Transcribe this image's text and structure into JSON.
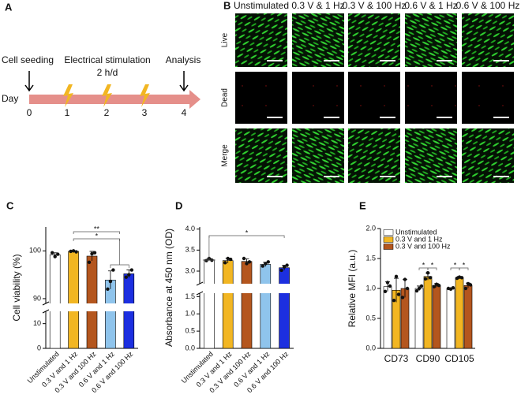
{
  "panel_a": {
    "letter": "A",
    "cell_seeding": "Cell seeding",
    "stimulation": "Electrical stimulation",
    "schedule": "2 h/d",
    "analysis": "Analysis",
    "day": "Day",
    "days": [
      "0",
      "1",
      "2",
      "3",
      "4"
    ]
  },
  "panel_b": {
    "letter": "B",
    "columns": [
      "Unstimulated",
      "0.3 V & 1 Hz",
      "0.3 V & 100 Hz",
      "0.6 V & 1 Hz",
      "0.6 V & 100 Hz"
    ],
    "rows": [
      "Live",
      "Dead",
      "Merge"
    ]
  },
  "chart_data": [
    {
      "type": "bar",
      "panel_letter": "C",
      "ylabel": "Cell viability (%)",
      "categories": [
        "Unstimulated",
        "0.3 V and 1 Hz",
        "0.3 V and 100 Hz",
        "0.6 V and 1 Hz",
        "0.6 V and 100 Hz"
      ],
      "values": [
        99.2,
        99.9,
        98.9,
        93.9,
        95.2
      ],
      "errors": [
        0.4,
        0.1,
        1.0,
        1.9,
        0.8
      ],
      "replicates": [
        [
          99.6,
          98.8,
          99.3
        ],
        [
          99.9,
          100,
          99.8
        ],
        [
          97.6,
          99.4,
          99.6
        ],
        [
          92.0,
          93.6,
          96.0
        ],
        [
          94.5,
          95.0,
          96.0
        ]
      ],
      "colors": [
        "#ffffff",
        "#f2b622",
        "#b4561e",
        "#8fc4ec",
        "#1c2fe0"
      ],
      "y_segments": [
        {
          "ylim": [
            0,
            15
          ],
          "yticks": [
            0,
            10
          ]
        },
        {
          "ylim": [
            89,
            105
          ],
          "yticks": [
            90,
            100
          ]
        }
      ],
      "annotations": [
        "**",
        "*"
      ]
    },
    {
      "type": "bar",
      "panel_letter": "D",
      "ylabel": "Absorbance at 450 nm (OD)",
      "categories": [
        "Unstimulated",
        "0.3 V and 1 Hz",
        "0.3 V and 100 Hz",
        "0.6 V and 1 Hz",
        "0.6 V and 100 Hz"
      ],
      "values": [
        3.27,
        3.25,
        3.23,
        3.16,
        3.08
      ],
      "errors": [
        0.03,
        0.06,
        0.06,
        0.05,
        0.06
      ],
      "replicates": [
        [
          3.25,
          3.3,
          3.26
        ],
        [
          3.2,
          3.3,
          3.28
        ],
        [
          3.3,
          3.18,
          3.22
        ],
        [
          3.12,
          3.18,
          3.22
        ],
        [
          3.02,
          3.1,
          3.14
        ]
      ],
      "colors": [
        "#ffffff",
        "#f2b622",
        "#b4561e",
        "#8fc4ec",
        "#1c2fe0"
      ],
      "y_segments": [
        {
          "ylim": [
            0,
            1.6
          ],
          "yticks": [
            {
              "value": 0,
              "label": "0.0"
            },
            {
              "value": 0.5,
              "label": "0.5"
            },
            {
              "value": 1,
              "label": "1.0"
            },
            {
              "value": 1.5,
              "label": "1.5"
            }
          ]
        },
        {
          "ylim": [
            2.7,
            4.05
          ],
          "yticks": [
            {
              "value": 3,
              "label": "3.0"
            },
            {
              "value": 3.5,
              "label": "3.5"
            },
            {
              "value": 4,
              "label": "4.0"
            }
          ]
        }
      ],
      "annotations": [
        "*"
      ]
    },
    {
      "type": "grouped_bar",
      "panel_letter": "E",
      "ylabel": "Relative MFI (a.u.)",
      "categories": [
        "CD73",
        "CD90",
        "CD105"
      ],
      "ylim": [
        0,
        2
      ],
      "yticks": [
        {
          "value": 0,
          "label": "0.0"
        },
        {
          "value": 0.5,
          "label": "0.5"
        },
        {
          "value": 1,
          "label": "1.0"
        },
        {
          "value": 1.5,
          "label": "1.5"
        },
        {
          "value": 2,
          "label": "2.0"
        }
      ],
      "legend": "top-left",
      "series": [
        {
          "name": "Unstimulated",
          "color": "#ffffff",
          "values": [
            1.03,
            1.0,
            1.0
          ],
          "errors": [
            0.08,
            0.04,
            0.01
          ],
          "replicates": [
            [
              0.95,
              1.1,
              1.04
            ],
            [
              0.96,
              1.0,
              1.04
            ],
            [
              1.0,
              0.99,
              1.01
            ]
          ]
        },
        {
          "name": "0.3 V and 1 Hz",
          "color": "#f2b622",
          "values": [
            0.97,
            1.2,
            1.18
          ],
          "errors": [
            0.2,
            0.06,
            0.02
          ],
          "replicates": [
            [
              0.8,
              1.2,
              0.9
            ],
            [
              1.16,
              1.26,
              1.18
            ],
            [
              1.17,
              1.19,
              1.18
            ]
          ]
        },
        {
          "name": "0.3 V and 100 Hz",
          "color": "#b4561e",
          "values": [
            1.0,
            1.05,
            1.05
          ],
          "errors": [
            0.15,
            0.03,
            0.04
          ],
          "replicates": [
            [
              0.85,
              1.15,
              1.0
            ],
            [
              1.03,
              1.07,
              1.05
            ],
            [
              1.0,
              1.08,
              1.06
            ]
          ]
        }
      ],
      "annotations": [
        "*",
        "*",
        "*",
        "*"
      ]
    }
  ]
}
